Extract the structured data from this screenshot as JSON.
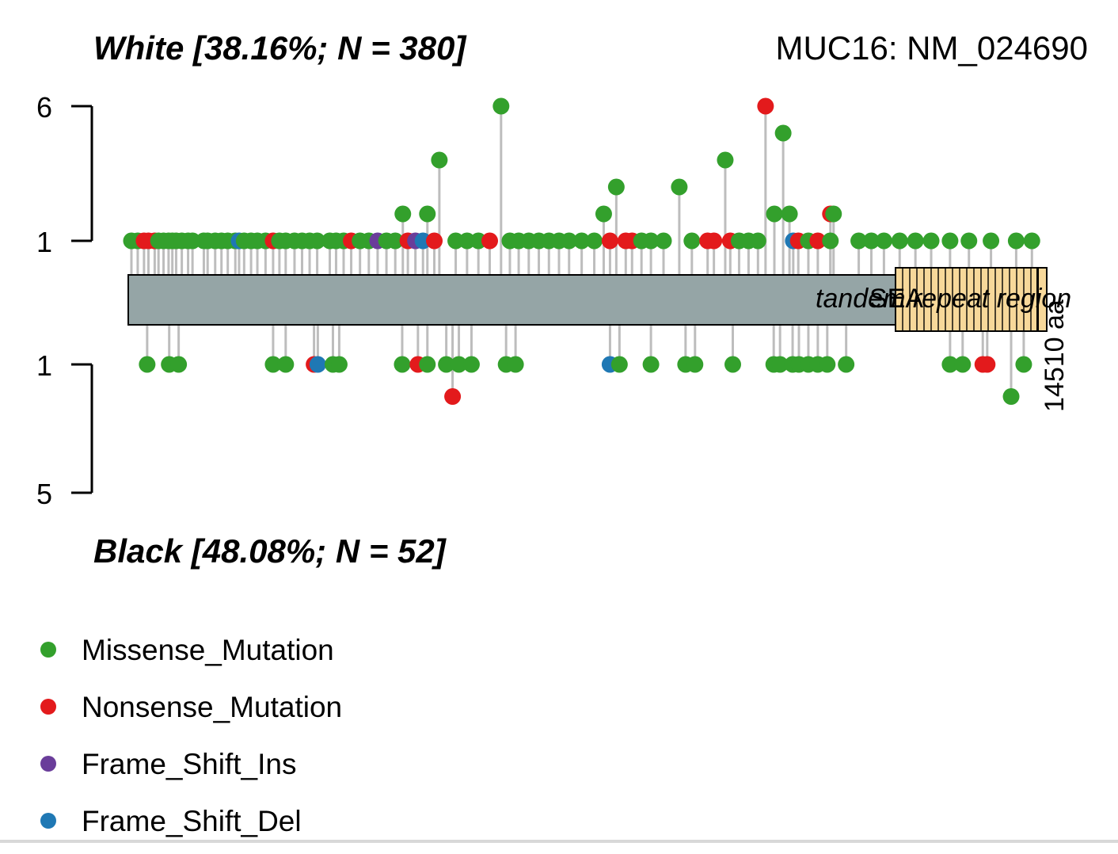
{
  "chart_data": {
    "type": "lollipop",
    "gene_label": "MUC16: NM_024690",
    "protein_length": "14510 aa",
    "top_panel": {
      "title": "White [38.16%; N = 380]",
      "yticks": [
        "6",
        "1"
      ],
      "y_range": [
        1,
        6
      ]
    },
    "bottom_panel": {
      "title": "Black [48.08%; N = 52]",
      "yticks": [
        "1",
        "5"
      ],
      "y_range": [
        1,
        5
      ]
    },
    "domains": [
      {
        "name": "tandem repeat region"
      },
      {
        "name": "SEA"
      }
    ],
    "colors": {
      "Missense_Mutation": "#33a02c",
      "Nonsense_Mutation": "#e31a1c",
      "Frame_Shift_Ins": "#6a3d9a",
      "Frame_Shift_Del": "#1f78b4",
      "protein_bar": "#95a5a6",
      "domain_fill": "#f7d89a",
      "stem": "#bdbdbd"
    },
    "top_mutations": [
      {
        "pos": 50,
        "count": 1,
        "type": "Missense_Mutation"
      },
      {
        "pos": 150,
        "count": 1,
        "type": "Missense_Mutation"
      },
      {
        "pos": 250,
        "count": 1,
        "type": "Nonsense_Mutation"
      },
      {
        "pos": 320,
        "count": 1,
        "type": "Nonsense_Mutation"
      },
      {
        "pos": 420,
        "count": 1,
        "type": "Nonsense_Mutation"
      },
      {
        "pos": 480,
        "count": 1,
        "type": "Missense_Mutation"
      },
      {
        "pos": 560,
        "count": 1,
        "type": "Missense_Mutation"
      },
      {
        "pos": 640,
        "count": 1,
        "type": "Missense_Mutation"
      },
      {
        "pos": 700,
        "count": 1,
        "type": "Missense_Mutation"
      },
      {
        "pos": 760,
        "count": 1,
        "type": "Missense_Mutation"
      },
      {
        "pos": 850,
        "count": 1,
        "type": "Missense_Mutation"
      },
      {
        "pos": 950,
        "count": 1,
        "type": "Missense_Mutation"
      },
      {
        "pos": 1020,
        "count": 1,
        "type": "Missense_Mutation"
      },
      {
        "pos": 1200,
        "count": 1,
        "type": "Missense_Mutation"
      },
      {
        "pos": 1260,
        "count": 1,
        "type": "Missense_Mutation"
      },
      {
        "pos": 1380,
        "count": 1,
        "type": "Missense_Mutation"
      },
      {
        "pos": 1480,
        "count": 1,
        "type": "Missense_Mutation"
      },
      {
        "pos": 1580,
        "count": 1,
        "type": "Missense_Mutation"
      },
      {
        "pos": 1700,
        "count": 1,
        "type": "Missense_Mutation"
      },
      {
        "pos": 1760,
        "count": 1,
        "type": "Frame_Shift_Del"
      },
      {
        "pos": 1840,
        "count": 1,
        "type": "Missense_Mutation"
      },
      {
        "pos": 1950,
        "count": 1,
        "type": "Missense_Mutation"
      },
      {
        "pos": 2050,
        "count": 1,
        "type": "Missense_Mutation"
      },
      {
        "pos": 2180,
        "count": 1,
        "type": "Missense_Mutation"
      },
      {
        "pos": 2300,
        "count": 1,
        "type": "Nonsense_Mutation"
      },
      {
        "pos": 2400,
        "count": 1,
        "type": "Missense_Mutation"
      },
      {
        "pos": 2500,
        "count": 1,
        "type": "Missense_Mutation"
      },
      {
        "pos": 2640,
        "count": 1,
        "type": "Missense_Mutation"
      },
      {
        "pos": 2760,
        "count": 1,
        "type": "Missense_Mutation"
      },
      {
        "pos": 2880,
        "count": 1,
        "type": "Missense_Mutation"
      },
      {
        "pos": 3000,
        "count": 1,
        "type": "Missense_Mutation"
      },
      {
        "pos": 3200,
        "count": 1,
        "type": "Missense_Mutation"
      },
      {
        "pos": 3300,
        "count": 1,
        "type": "Missense_Mutation"
      },
      {
        "pos": 3420,
        "count": 1,
        "type": "Missense_Mutation"
      },
      {
        "pos": 3540,
        "count": 1,
        "type": "Nonsense_Mutation"
      },
      {
        "pos": 3680,
        "count": 1,
        "type": "Missense_Mutation"
      },
      {
        "pos": 3820,
        "count": 1,
        "type": "Missense_Mutation"
      },
      {
        "pos": 3960,
        "count": 1,
        "type": "Frame_Shift_Ins"
      },
      {
        "pos": 4100,
        "count": 1,
        "type": "Missense_Mutation"
      },
      {
        "pos": 4240,
        "count": 1,
        "type": "Missense_Mutation"
      },
      {
        "pos": 4360,
        "count": 2,
        "type": "Missense_Mutation"
      },
      {
        "pos": 4440,
        "count": 1,
        "type": "Nonsense_Mutation"
      },
      {
        "pos": 4560,
        "count": 1,
        "type": "Frame_Shift_Ins"
      },
      {
        "pos": 4680,
        "count": 1,
        "type": "Frame_Shift_Del"
      },
      {
        "pos": 4750,
        "count": 2,
        "type": "Missense_Mutation"
      },
      {
        "pos": 4860,
        "count": 1,
        "type": "Nonsense_Mutation"
      },
      {
        "pos": 4940,
        "count": 4,
        "type": "Missense_Mutation"
      },
      {
        "pos": 5200,
        "count": 1,
        "type": "Missense_Mutation"
      },
      {
        "pos": 5380,
        "count": 1,
        "type": "Missense_Mutation"
      },
      {
        "pos": 5560,
        "count": 1,
        "type": "Missense_Mutation"
      },
      {
        "pos": 5740,
        "count": 1,
        "type": "Nonsense_Mutation"
      },
      {
        "pos": 5920,
        "count": 6,
        "type": "Missense_Mutation"
      },
      {
        "pos": 6060,
        "count": 1,
        "type": "Missense_Mutation"
      },
      {
        "pos": 6200,
        "count": 1,
        "type": "Missense_Mutation"
      },
      {
        "pos": 6360,
        "count": 1,
        "type": "Missense_Mutation"
      },
      {
        "pos": 6520,
        "count": 1,
        "type": "Missense_Mutation"
      },
      {
        "pos": 6680,
        "count": 1,
        "type": "Missense_Mutation"
      },
      {
        "pos": 6840,
        "count": 1,
        "type": "Missense_Mutation"
      },
      {
        "pos": 7000,
        "count": 1,
        "type": "Missense_Mutation"
      },
      {
        "pos": 7200,
        "count": 1,
        "type": "Missense_Mutation"
      },
      {
        "pos": 7400,
        "count": 1,
        "type": "Missense_Mutation"
      },
      {
        "pos": 7550,
        "count": 2,
        "type": "Missense_Mutation"
      },
      {
        "pos": 7650,
        "count": 1,
        "type": "Nonsense_Mutation"
      },
      {
        "pos": 7750,
        "count": 3,
        "type": "Missense_Mutation"
      },
      {
        "pos": 7900,
        "count": 1,
        "type": "Nonsense_Mutation"
      },
      {
        "pos": 8000,
        "count": 1,
        "type": "Nonsense_Mutation"
      },
      {
        "pos": 8150,
        "count": 1,
        "type": "Missense_Mutation"
      },
      {
        "pos": 8300,
        "count": 1,
        "type": "Missense_Mutation"
      },
      {
        "pos": 8500,
        "count": 1,
        "type": "Missense_Mutation"
      },
      {
        "pos": 8750,
        "count": 3,
        "type": "Missense_Mutation"
      },
      {
        "pos": 8950,
        "count": 1,
        "type": "Missense_Mutation"
      },
      {
        "pos": 9200,
        "count": 1,
        "type": "Nonsense_Mutation"
      },
      {
        "pos": 9300,
        "count": 1,
        "type": "Nonsense_Mutation"
      },
      {
        "pos": 9480,
        "count": 4,
        "type": "Missense_Mutation"
      },
      {
        "pos": 9560,
        "count": 1,
        "type": "Nonsense_Mutation"
      },
      {
        "pos": 9700,
        "count": 1,
        "type": "Missense_Mutation"
      },
      {
        "pos": 9850,
        "count": 1,
        "type": "Missense_Mutation"
      },
      {
        "pos": 10000,
        "count": 1,
        "type": "Missense_Mutation"
      },
      {
        "pos": 10120,
        "count": 6,
        "type": "Nonsense_Mutation"
      },
      {
        "pos": 10260,
        "count": 2,
        "type": "Missense_Mutation"
      },
      {
        "pos": 10400,
        "count": 5,
        "type": "Missense_Mutation"
      },
      {
        "pos": 10500,
        "count": 2,
        "type": "Missense_Mutation"
      },
      {
        "pos": 10560,
        "count": 1,
        "type": "Frame_Shift_Del"
      },
      {
        "pos": 10640,
        "count": 1,
        "type": "Nonsense_Mutation"
      },
      {
        "pos": 10800,
        "count": 1,
        "type": "Missense_Mutation"
      },
      {
        "pos": 10950,
        "count": 1,
        "type": "Nonsense_Mutation"
      },
      {
        "pos": 11150,
        "count": 2,
        "type": "Nonsense_Mutation"
      },
      {
        "pos": 11200,
        "count": 2,
        "type": "Missense_Mutation"
      },
      {
        "pos": 11150,
        "count": 1,
        "type": "Missense_Mutation"
      },
      {
        "pos": 11600,
        "count": 1,
        "type": "Missense_Mutation"
      },
      {
        "pos": 11800,
        "count": 1,
        "type": "Missense_Mutation"
      },
      {
        "pos": 12000,
        "count": 1,
        "type": "Missense_Mutation"
      },
      {
        "pos": 12250,
        "count": 1,
        "type": "Missense_Mutation"
      },
      {
        "pos": 12500,
        "count": 1,
        "type": "Missense_Mutation"
      },
      {
        "pos": 12750,
        "count": 1,
        "type": "Missense_Mutation"
      },
      {
        "pos": 13050,
        "count": 1,
        "type": "Missense_Mutation"
      },
      {
        "pos": 13350,
        "count": 1,
        "type": "Missense_Mutation"
      },
      {
        "pos": 13700,
        "count": 1,
        "type": "Missense_Mutation"
      },
      {
        "pos": 14100,
        "count": 1,
        "type": "Missense_Mutation"
      },
      {
        "pos": 14350,
        "count": 1,
        "type": "Missense_Mutation"
      }
    ],
    "bottom_mutations": [
      {
        "pos": 300,
        "count": 1,
        "type": "Missense_Mutation"
      },
      {
        "pos": 650,
        "count": 1,
        "type": "Missense_Mutation"
      },
      {
        "pos": 800,
        "count": 1,
        "type": "Missense_Mutation"
      },
      {
        "pos": 2300,
        "count": 1,
        "type": "Missense_Mutation"
      },
      {
        "pos": 2500,
        "count": 1,
        "type": "Missense_Mutation"
      },
      {
        "pos": 2950,
        "count": 1,
        "type": "Nonsense_Mutation"
      },
      {
        "pos": 3010,
        "count": 1,
        "type": "Frame_Shift_Del"
      },
      {
        "pos": 3250,
        "count": 1,
        "type": "Missense_Mutation"
      },
      {
        "pos": 3350,
        "count": 1,
        "type": "Missense_Mutation"
      },
      {
        "pos": 4350,
        "count": 1,
        "type": "Missense_Mutation"
      },
      {
        "pos": 4600,
        "count": 1,
        "type": "Nonsense_Mutation"
      },
      {
        "pos": 4750,
        "count": 1,
        "type": "Missense_Mutation"
      },
      {
        "pos": 5050,
        "count": 1,
        "type": "Missense_Mutation"
      },
      {
        "pos": 5150,
        "count": 2,
        "type": "Nonsense_Mutation"
      },
      {
        "pos": 5250,
        "count": 1,
        "type": "Missense_Mutation"
      },
      {
        "pos": 5450,
        "count": 1,
        "type": "Missense_Mutation"
      },
      {
        "pos": 6000,
        "count": 1,
        "type": "Missense_Mutation"
      },
      {
        "pos": 6150,
        "count": 1,
        "type": "Missense_Mutation"
      },
      {
        "pos": 7650,
        "count": 1,
        "type": "Frame_Shift_Del"
      },
      {
        "pos": 7800,
        "count": 1,
        "type": "Missense_Mutation"
      },
      {
        "pos": 8300,
        "count": 1,
        "type": "Missense_Mutation"
      },
      {
        "pos": 8850,
        "count": 1,
        "type": "Missense_Mutation"
      },
      {
        "pos": 9000,
        "count": 1,
        "type": "Missense_Mutation"
      },
      {
        "pos": 9600,
        "count": 1,
        "type": "Missense_Mutation"
      },
      {
        "pos": 10250,
        "count": 1,
        "type": "Missense_Mutation"
      },
      {
        "pos": 10350,
        "count": 1,
        "type": "Missense_Mutation"
      },
      {
        "pos": 10550,
        "count": 1,
        "type": "Missense_Mutation"
      },
      {
        "pos": 10650,
        "count": 1,
        "type": "Missense_Mutation"
      },
      {
        "pos": 10800,
        "count": 1,
        "type": "Missense_Mutation"
      },
      {
        "pos": 10950,
        "count": 1,
        "type": "Missense_Mutation"
      },
      {
        "pos": 11100,
        "count": 1,
        "type": "Missense_Mutation"
      },
      {
        "pos": 11400,
        "count": 1,
        "type": "Missense_Mutation"
      },
      {
        "pos": 13050,
        "count": 1,
        "type": "Missense_Mutation"
      },
      {
        "pos": 13250,
        "count": 1,
        "type": "Missense_Mutation"
      },
      {
        "pos": 13570,
        "count": 1,
        "type": "Nonsense_Mutation"
      },
      {
        "pos": 13640,
        "count": 1,
        "type": "Nonsense_Mutation"
      },
      {
        "pos": 14020,
        "count": 2,
        "type": "Missense_Mutation"
      },
      {
        "pos": 14220,
        "count": 1,
        "type": "Missense_Mutation"
      }
    ]
  },
  "legend": {
    "items": [
      {
        "label": "Missense_Mutation",
        "color": "#33a02c"
      },
      {
        "label": "Nonsense_Mutation",
        "color": "#e31a1c"
      },
      {
        "label": "Frame_Shift_Ins",
        "color": "#6a3d9a"
      },
      {
        "label": "Frame_Shift_Del",
        "color": "#1f78b4"
      }
    ]
  }
}
